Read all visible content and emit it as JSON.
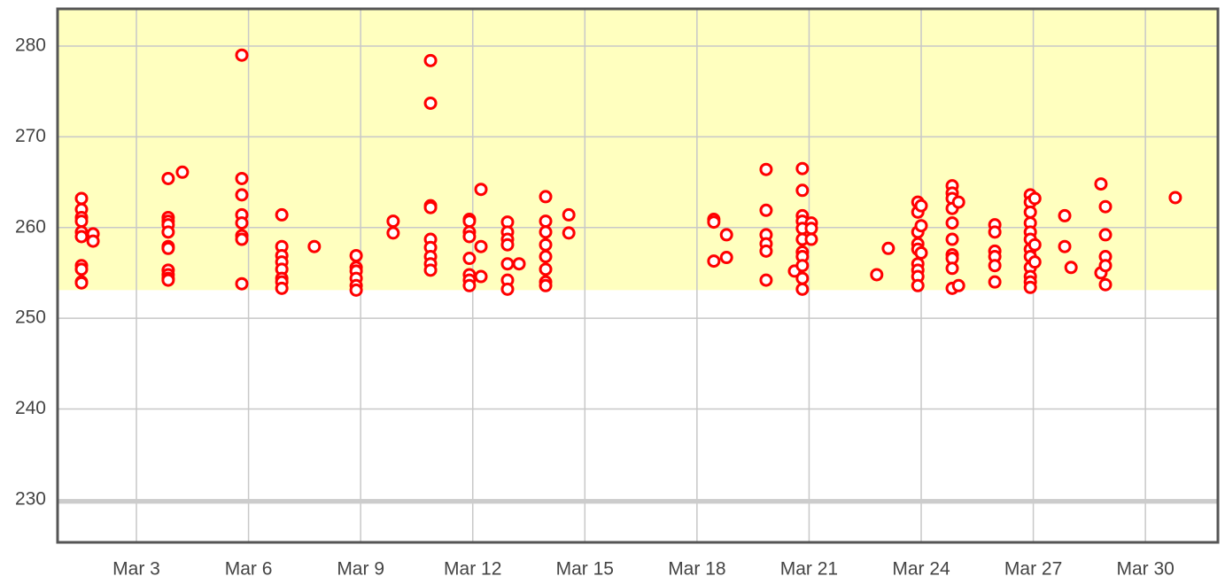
{
  "chart_data": {
    "type": "scatter",
    "xlim": [
      0.89,
      31.94
    ],
    "ylim": [
      225.3,
      284.1
    ],
    "xticks": [
      {
        "value": 3,
        "label": "Mar 3"
      },
      {
        "value": 6,
        "label": "Mar 6"
      },
      {
        "value": 9,
        "label": "Mar 9"
      },
      {
        "value": 12,
        "label": "Mar 12"
      },
      {
        "value": 15,
        "label": "Mar 15"
      },
      {
        "value": 18,
        "label": "Mar 18"
      },
      {
        "value": 21,
        "label": "Mar 21"
      },
      {
        "value": 24,
        "label": "Mar 24"
      },
      {
        "value": 27,
        "label": "Mar 27"
      },
      {
        "value": 30,
        "label": "Mar 30"
      }
    ],
    "yticks": [
      230,
      240,
      250,
      260,
      270,
      280
    ],
    "grid": true,
    "band": {
      "from": 253.1,
      "color": "#ffffbf"
    },
    "reference_line": {
      "value": 229.8,
      "color": "#cccccc"
    },
    "series": [
      {
        "color": "#ff0000",
        "x": [
          1.53,
          1.53,
          1.53,
          1.53,
          1.53,
          1.53,
          1.53,
          1.53,
          1.53,
          1.53,
          1.84,
          1.84,
          3.85,
          3.85,
          3.85,
          3.85,
          3.85,
          3.85,
          3.85,
          3.85,
          3.85,
          3.85,
          3.85,
          4.23,
          5.82,
          5.82,
          5.82,
          5.82,
          5.82,
          5.82,
          5.82,
          5.82,
          6.89,
          6.89,
          6.89,
          6.89,
          6.89,
          6.89,
          6.89,
          6.89,
          7.76,
          8.88,
          8.88,
          8.88,
          8.88,
          8.88,
          8.88,
          9.87,
          9.87,
          10.87,
          10.87,
          10.87,
          10.87,
          10.87,
          10.87,
          10.87,
          10.87,
          10.87,
          11.91,
          11.91,
          11.91,
          11.91,
          11.91,
          11.91,
          11.91,
          11.91,
          12.22,
          12.22,
          12.22,
          12.93,
          12.93,
          12.93,
          12.93,
          12.93,
          12.93,
          12.93,
          13.24,
          13.95,
          13.95,
          13.95,
          13.95,
          13.95,
          13.95,
          13.95,
          13.95,
          14.57,
          14.57,
          18.45,
          18.45,
          18.45,
          18.79,
          18.79,
          19.85,
          19.85,
          19.85,
          19.85,
          19.85,
          19.85,
          20.61,
          20.82,
          20.82,
          20.82,
          20.82,
          20.82,
          20.82,
          20.82,
          20.82,
          20.82,
          20.82,
          20.82,
          21.06,
          21.06,
          21.06,
          22.81,
          23.12,
          23.91,
          23.91,
          23.91,
          23.91,
          23.91,
          23.91,
          23.91,
          23.91,
          23.91,
          24.0,
          24.0,
          24.0,
          24.83,
          24.83,
          24.83,
          24.83,
          24.83,
          24.83,
          24.83,
          24.83,
          24.83,
          24.83,
          25.0,
          25.0,
          25.97,
          25.97,
          25.97,
          25.97,
          25.97,
          25.97,
          26.92,
          26.92,
          26.92,
          26.92,
          26.92,
          26.92,
          26.92,
          26.92,
          26.92,
          26.92,
          26.92,
          26.92,
          27.04,
          27.04,
          27.04,
          27.84,
          27.84,
          28.01,
          28.81,
          28.81,
          28.93,
          28.93,
          28.93,
          28.93,
          28.93,
          30.8
        ],
        "values": [
          263.2,
          262,
          261.1,
          260.7,
          259.5,
          259,
          255.8,
          255.4,
          254,
          253.9,
          259.3,
          258.5,
          265.4,
          261.1,
          260.7,
          260.3,
          259.5,
          257.9,
          257.7,
          255.3,
          254.8,
          254.4,
          254.2,
          266.1,
          279,
          265.4,
          263.6,
          261.4,
          260.5,
          259.1,
          258.7,
          253.8,
          261.4,
          257.9,
          256.9,
          256.2,
          255.4,
          254.4,
          254,
          253.3,
          257.9,
          256.9,
          255.6,
          255.2,
          254.4,
          253.6,
          253.1,
          260.7,
          259.4,
          278.4,
          273.7,
          262.4,
          262.2,
          258.7,
          257.8,
          256.8,
          256,
          255.3,
          260.9,
          260.7,
          259.5,
          259,
          256.6,
          254.8,
          254.2,
          253.6,
          264.2,
          257.9,
          254.6,
          260.6,
          259.5,
          258.7,
          258.1,
          256,
          254.2,
          253.2,
          256,
          263.4,
          260.7,
          259.5,
          258.1,
          256.8,
          255.4,
          254,
          253.6,
          261.4,
          259.4,
          260.9,
          260.6,
          256.3,
          259.2,
          256.7,
          266.4,
          261.9,
          259.2,
          258.2,
          257.4,
          254.2,
          255.2,
          266.5,
          264.1,
          261.3,
          260.7,
          259.9,
          258.7,
          257.3,
          256.8,
          255.8,
          254.4,
          253.2,
          260.5,
          259.9,
          258.7,
          254.8,
          257.7,
          262.8,
          261.7,
          259.5,
          258.2,
          257.6,
          256,
          255.3,
          254.6,
          253.6,
          262.4,
          260.2,
          257.2,
          264.6,
          263.8,
          263.2,
          262.1,
          260.5,
          258.7,
          257,
          256.6,
          255.5,
          253.3,
          262.8,
          253.6,
          260.3,
          259.5,
          257.4,
          256.8,
          255.8,
          254,
          263.6,
          262.8,
          261.7,
          260.5,
          259.5,
          258.7,
          257.6,
          256.8,
          255.6,
          254.6,
          254,
          253.4,
          263.2,
          258.1,
          256.2,
          261.3,
          257.9,
          255.6,
          264.8,
          255,
          262.3,
          259.2,
          256.8,
          255.8,
          253.7,
          263.3
        ]
      }
    ]
  }
}
